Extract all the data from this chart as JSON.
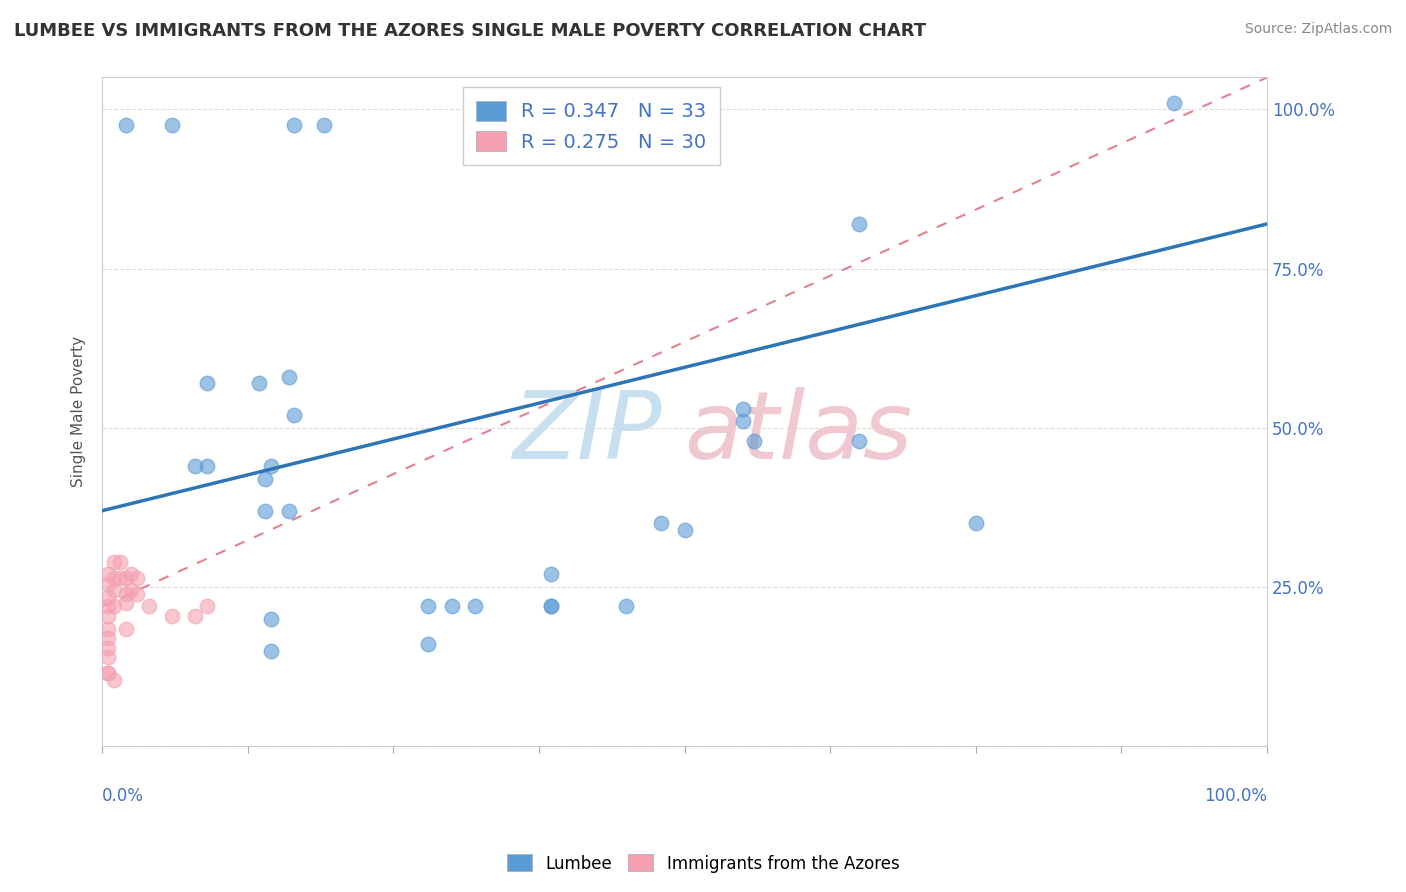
{
  "title": "LUMBEE VS IMMIGRANTS FROM THE AZORES SINGLE MALE POVERTY CORRELATION CHART",
  "source": "Source: ZipAtlas.com",
  "ylabel": "Single Male Poverty",
  "lumbee_color": "#5b9bd5",
  "lumbee_line_color": "#2e75b6",
  "azores_color": "#f4a0b0",
  "azores_line_color": "#e06070",
  "azores_dash_color": "#e8a0a8",
  "lumbee_R": 0.347,
  "lumbee_N": 33,
  "azores_R": 0.275,
  "azores_N": 30,
  "lumbee_x": [
    0.02,
    0.06,
    0.165,
    0.19,
    0.09,
    0.135,
    0.145,
    0.16,
    0.165,
    0.08,
    0.09,
    0.14,
    0.16,
    0.14,
    0.55,
    0.56,
    0.65,
    0.55,
    0.65,
    0.75,
    0.48,
    0.385,
    0.385,
    0.385,
    0.145,
    0.145,
    0.3,
    0.45,
    0.92,
    0.5,
    0.32,
    0.28,
    0.28
  ],
  "lumbee_y": [
    0.975,
    0.975,
    0.975,
    0.975,
    0.57,
    0.57,
    0.44,
    0.58,
    0.52,
    0.44,
    0.44,
    0.37,
    0.37,
    0.42,
    0.53,
    0.48,
    0.82,
    0.51,
    0.48,
    0.35,
    0.35,
    0.22,
    0.27,
    0.22,
    0.2,
    0.15,
    0.22,
    0.22,
    1.01,
    0.34,
    0.22,
    0.16,
    0.22
  ],
  "azores_x": [
    0.005,
    0.005,
    0.005,
    0.005,
    0.005,
    0.005,
    0.005,
    0.005,
    0.005,
    0.005,
    0.005,
    0.01,
    0.01,
    0.01,
    0.01,
    0.01,
    0.015,
    0.015,
    0.02,
    0.02,
    0.02,
    0.02,
    0.025,
    0.025,
    0.03,
    0.03,
    0.04,
    0.06,
    0.08,
    0.09
  ],
  "azores_y": [
    0.27,
    0.255,
    0.235,
    0.22,
    0.205,
    0.185,
    0.17,
    0.155,
    0.14,
    0.115,
    0.115,
    0.29,
    0.265,
    0.245,
    0.22,
    0.105,
    0.29,
    0.265,
    0.265,
    0.24,
    0.225,
    0.185,
    0.27,
    0.245,
    0.265,
    0.24,
    0.22,
    0.205,
    0.205,
    0.22
  ],
  "lumbee_line_x0": 0.0,
  "lumbee_line_y0": 0.37,
  "lumbee_line_x1": 1.0,
  "lumbee_line_y1": 0.82,
  "azores_line_x0": 0.0,
  "azores_line_y0": 0.22,
  "azores_line_x1": 1.0,
  "azores_line_y1": 1.05,
  "ylim_max": 1.05,
  "yticks": [
    0.0,
    0.25,
    0.5,
    0.75,
    1.0
  ],
  "ytick_labels": [
    "",
    "25.0%",
    "50.0%",
    "75.0%",
    "100.0%"
  ],
  "xticks": [
    0.0,
    0.125,
    0.25,
    0.375,
    0.5,
    0.625,
    0.75,
    0.875,
    1.0
  ],
  "grid_color": "#dddddd",
  "tick_color": "#4472c4",
  "watermark_zip_color": "#c8dff0",
  "watermark_atlas_color": "#f0c8d0"
}
